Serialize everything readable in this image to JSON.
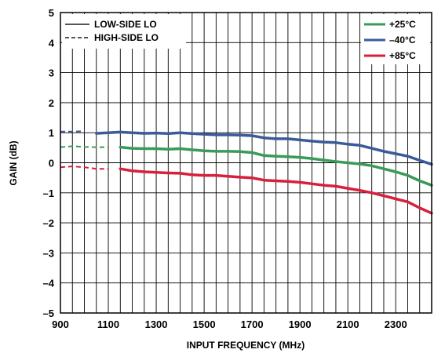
{
  "chart_data": {
    "type": "line",
    "xlabel": "INPUT FREQUENCY (MHz)",
    "ylabel": "GAIN (dB)",
    "xlim": [
      900,
      2450
    ],
    "ylim": [
      -5,
      5
    ],
    "x_ticks": [
      900,
      1100,
      1300,
      1500,
      1700,
      1900,
      2100,
      2300
    ],
    "x_tick_labels": [
      "900",
      "1100",
      "1300",
      "1500",
      "1700",
      "1900",
      "2100",
      "2300"
    ],
    "y_ticks": [
      -5,
      -4,
      -3,
      -2,
      -1,
      0,
      1,
      2,
      3,
      4,
      5
    ],
    "y_tick_labels": [
      "–5",
      "–4",
      "–3",
      "–2",
      "–1",
      "0",
      "1",
      "2",
      "3",
      "4",
      "5"
    ],
    "grid": true,
    "style_legend": {
      "placement": "top-left",
      "entries": [
        {
          "label": "LOW-SIDE LO",
          "dash": "solid"
        },
        {
          "label": "HIGH-SIDE LO",
          "dash": "dashed"
        }
      ]
    },
    "color_legend": {
      "placement": "top-right",
      "entries": [
        {
          "label": "+25°C",
          "color": "#3a9a5a"
        },
        {
          "label": "–40°C",
          "color": "#3a5a9a"
        },
        {
          "label": "+85°C",
          "color": "#d81f3c"
        }
      ]
    },
    "x": [
      900,
      950,
      1000,
      1050,
      1100,
      1150,
      1200,
      1250,
      1300,
      1350,
      1400,
      1450,
      1500,
      1550,
      1600,
      1650,
      1700,
      1750,
      1800,
      1850,
      1900,
      1950,
      2000,
      2050,
      2100,
      2150,
      2200,
      2250,
      2300,
      2350,
      2400,
      2450
    ],
    "series": [
      {
        "name": "–40°C",
        "color": "#3a5a9a",
        "high_side_lo": [
          1.04,
          1.04,
          1.05,
          null,
          null,
          null,
          null,
          null,
          null,
          null,
          null,
          null,
          null,
          null,
          null,
          null,
          null,
          null,
          null,
          null,
          null,
          null,
          null,
          null,
          null,
          null,
          null,
          null,
          null,
          null,
          null,
          null
        ],
        "low_side_lo": [
          null,
          null,
          null,
          0.98,
          1.0,
          1.02,
          1.0,
          0.98,
          0.99,
          0.97,
          1.0,
          0.97,
          0.95,
          0.93,
          0.93,
          0.92,
          0.9,
          0.83,
          0.8,
          0.8,
          0.76,
          0.72,
          0.69,
          0.67,
          0.62,
          0.58,
          0.48,
          0.38,
          0.3,
          0.22,
          0.08,
          -0.05
        ]
      },
      {
        "name": "+25°C",
        "color": "#3a9a5a",
        "high_side_lo": [
          0.52,
          0.55,
          0.53,
          0.52,
          0.52,
          null,
          null,
          null,
          null,
          null,
          null,
          null,
          null,
          null,
          null,
          null,
          null,
          null,
          null,
          null,
          null,
          null,
          null,
          null,
          null,
          null,
          null,
          null,
          null,
          null,
          null,
          null
        ],
        "low_side_lo": [
          null,
          null,
          null,
          null,
          null,
          0.52,
          0.48,
          0.47,
          0.47,
          0.45,
          0.47,
          0.43,
          0.4,
          0.38,
          0.38,
          0.37,
          0.34,
          0.24,
          0.22,
          0.2,
          0.18,
          0.14,
          0.09,
          0.04,
          0.0,
          -0.04,
          -0.1,
          -0.2,
          -0.3,
          -0.42,
          -0.6,
          -0.75
        ]
      },
      {
        "name": "+85°C",
        "color": "#d81f3c",
        "high_side_lo": [
          -0.15,
          -0.12,
          -0.15,
          -0.2,
          -0.2,
          null,
          null,
          null,
          null,
          null,
          null,
          null,
          null,
          null,
          null,
          null,
          null,
          null,
          null,
          null,
          null,
          null,
          null,
          null,
          null,
          null,
          null,
          null,
          null,
          null,
          null,
          null
        ],
        "low_side_lo": [
          null,
          null,
          null,
          null,
          null,
          -0.2,
          -0.27,
          -0.3,
          -0.32,
          -0.34,
          -0.35,
          -0.4,
          -0.42,
          -0.42,
          -0.45,
          -0.48,
          -0.5,
          -0.58,
          -0.6,
          -0.62,
          -0.65,
          -0.7,
          -0.75,
          -0.78,
          -0.85,
          -0.92,
          -1.0,
          -1.1,
          -1.2,
          -1.3,
          -1.5,
          -1.68
        ]
      }
    ]
  }
}
